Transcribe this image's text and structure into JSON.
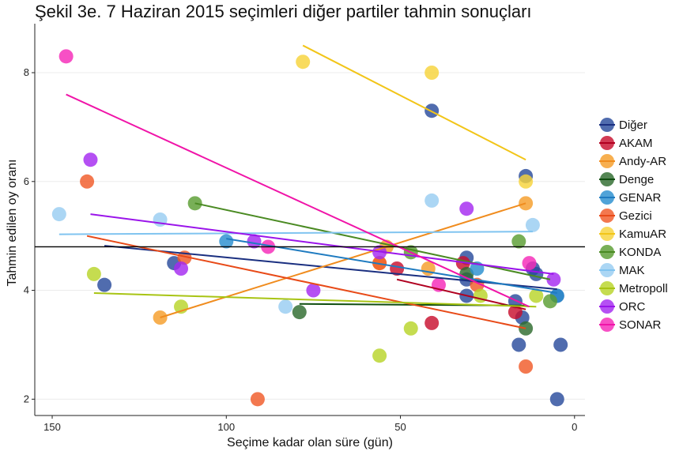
{
  "chart_data": {
    "type": "scatter",
    "title": "Şekil 3e. 7 Haziran 2015 seçimleri diğer partiler tahmin sonuçları",
    "xlabel": "Seçime kadar olan süre (gün)",
    "ylabel": "Tahmin edilen oy oranı",
    "xlim": [
      155,
      -3
    ],
    "ylim": [
      1.7,
      8.9
    ],
    "x_reversed": true,
    "xticks": [
      150,
      100,
      50,
      0
    ],
    "yticks": [
      2,
      4,
      6,
      8
    ],
    "grid": "horizontal",
    "reference_line_y": 4.8,
    "legend_position": "right",
    "series": [
      {
        "name": "Diğer",
        "color": "#2a4c9c",
        "line_color": "#1a2f80",
        "points": [
          [
            135,
            4.1
          ],
          [
            115,
            4.5
          ],
          [
            41,
            7.3
          ],
          [
            31,
            4.2
          ],
          [
            31,
            3.9
          ],
          [
            31,
            4.6
          ],
          [
            16,
            3.0
          ],
          [
            15,
            3.5
          ],
          [
            14,
            6.1
          ],
          [
            12,
            4.4
          ],
          [
            11,
            4.3
          ],
          [
            5,
            2.0
          ],
          [
            5,
            3.9
          ],
          [
            4,
            3.0
          ],
          [
            17,
            3.8
          ]
        ],
        "trend": [
          [
            135,
            4.82
          ],
          [
            5,
            4.02
          ]
        ]
      },
      {
        "name": "AKAM",
        "color": "#c8102e",
        "line_color": "#b00020",
        "points": [
          [
            51,
            4.4
          ],
          [
            41,
            3.4
          ],
          [
            32,
            4.5
          ],
          [
            17,
            3.6
          ]
        ],
        "trend": [
          [
            51,
            4.2
          ],
          [
            14,
            3.65
          ]
        ]
      },
      {
        "name": "Andy-AR",
        "color": "#f59e2a",
        "line_color": "#f08c1e",
        "points": [
          [
            119,
            3.5
          ],
          [
            56,
            4.5
          ],
          [
            54,
            4.8
          ],
          [
            42,
            4.4
          ],
          [
            14,
            5.6
          ]
        ],
        "trend": [
          [
            119,
            3.5
          ],
          [
            14,
            5.6
          ]
        ]
      },
      {
        "name": "Denge",
        "color": "#2e6b2e",
        "line_color": "#0f4d0f",
        "points": [
          [
            79,
            3.6
          ],
          [
            31,
            4.3
          ],
          [
            14,
            3.3
          ]
        ],
        "trend": [
          [
            79,
            3.75
          ],
          [
            14,
            3.72
          ]
        ]
      },
      {
        "name": "GENAR",
        "color": "#2a8fd0",
        "line_color": "#1f7bc0",
        "points": [
          [
            100,
            4.9
          ],
          [
            28,
            4.4
          ],
          [
            5,
            3.9
          ]
        ],
        "trend": [
          [
            100,
            4.95
          ],
          [
            5,
            3.95
          ]
        ]
      },
      {
        "name": "Gezici",
        "color": "#f05a28",
        "line_color": "#e84a18",
        "points": [
          [
            140,
            6.0
          ],
          [
            112,
            4.6
          ],
          [
            56,
            4.5
          ],
          [
            28,
            4.1
          ],
          [
            14,
            2.6
          ],
          [
            91,
            2.0
          ]
        ],
        "trend": [
          [
            140,
            5.0
          ],
          [
            14,
            3.3
          ]
        ]
      },
      {
        "name": "KamuAR",
        "color": "#f7d33a",
        "line_color": "#f2c518",
        "points": [
          [
            78,
            8.2
          ],
          [
            41,
            8.0
          ],
          [
            14,
            6.0
          ]
        ],
        "trend": [
          [
            78,
            8.5
          ],
          [
            14,
            6.4
          ]
        ]
      },
      {
        "name": "KONDA",
        "color": "#5a9e32",
        "line_color": "#4a8a22",
        "points": [
          [
            109,
            5.6
          ],
          [
            47,
            4.7
          ],
          [
            16,
            4.9
          ],
          [
            7,
            3.8
          ]
        ],
        "trend": [
          [
            109,
            5.6
          ],
          [
            7,
            4.2
          ]
        ]
      },
      {
        "name": "MAK",
        "color": "#99cdf2",
        "line_color": "#80c4f0",
        "points": [
          [
            148,
            5.4
          ],
          [
            119,
            5.3
          ],
          [
            83,
            3.7
          ],
          [
            41,
            5.65
          ],
          [
            12,
            5.2
          ]
        ],
        "trend": [
          [
            148,
            5.03
          ],
          [
            12,
            5.08
          ]
        ]
      },
      {
        "name": "Metropoll",
        "color": "#b8d42a",
        "line_color": "#a8c414",
        "points": [
          [
            138,
            4.3
          ],
          [
            113,
            3.7
          ],
          [
            56,
            2.8
          ],
          [
            47,
            3.3
          ],
          [
            27,
            3.9
          ],
          [
            11,
            3.9
          ]
        ],
        "trend": [
          [
            138,
            3.95
          ],
          [
            11,
            3.7
          ]
        ]
      },
      {
        "name": "ORC",
        "color": "#a52af0",
        "line_color": "#9a14ea",
        "points": [
          [
            139,
            6.4
          ],
          [
            113,
            4.4
          ],
          [
            92,
            4.9
          ],
          [
            75,
            4.0
          ],
          [
            56,
            4.7
          ],
          [
            31,
            5.5
          ],
          [
            6,
            4.2
          ]
        ],
        "trend": [
          [
            139,
            5.4
          ],
          [
            6,
            4.3
          ]
        ]
      },
      {
        "name": "SONAR",
        "color": "#f52ab8",
        "line_color": "#f014a8",
        "points": [
          [
            146,
            8.3
          ],
          [
            88,
            4.8
          ],
          [
            39,
            4.1
          ],
          [
            13,
            4.5
          ]
        ],
        "trend": [
          [
            146,
            7.6
          ],
          [
            13,
            3.7
          ]
        ]
      }
    ]
  }
}
